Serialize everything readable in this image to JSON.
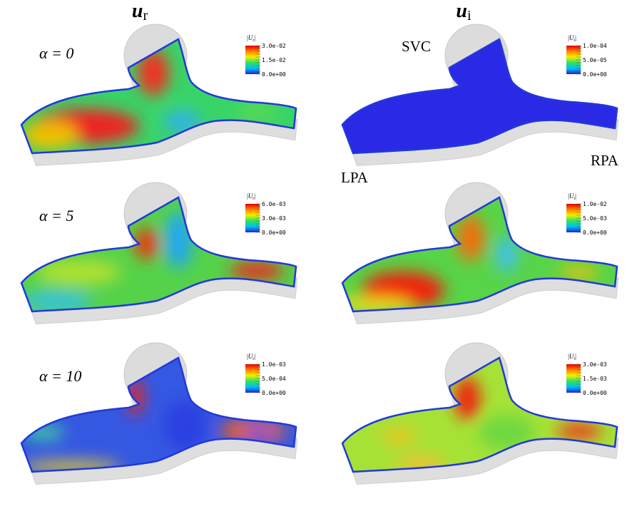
{
  "columns": [
    {
      "symbol": "u",
      "subscript": "r"
    },
    {
      "symbol": "u",
      "subscript": "i"
    }
  ],
  "rows": [
    {
      "label": "α = 0",
      "panels": [
        {
          "colorbar": {
            "title": {
              "open": "|",
              "symbol": "U",
              "subscript": "r",
              "close": "|"
            },
            "ticks": [
              "3.0e-02",
              "1.5e-02",
              "0.0e+00"
            ]
          }
        },
        {
          "colorbar": {
            "title": {
              "open": "|",
              "symbol": "U",
              "subscript": "i",
              "close": "|"
            },
            "ticks": [
              "1.0e-04",
              "5.0e-05",
              "0.0e+00"
            ]
          }
        }
      ]
    },
    {
      "label": "α = 5",
      "panels": [
        {
          "colorbar": {
            "title": {
              "open": "|",
              "symbol": "U",
              "subscript": "r",
              "close": "|"
            },
            "ticks": [
              "6.0e-03",
              "3.0e-03",
              "0.0e+00"
            ]
          }
        },
        {
          "colorbar": {
            "title": {
              "open": "|",
              "symbol": "U",
              "subscript": "i",
              "close": "|"
            },
            "ticks": [
              "1.0e-02",
              "5.0e-03",
              "0.0e+00"
            ]
          }
        }
      ]
    },
    {
      "label": "α = 10",
      "panels": [
        {
          "colorbar": {
            "title": {
              "open": "|",
              "symbol": "U",
              "subscript": "r",
              "close": "|"
            },
            "ticks": [
              "1.0e-03",
              "5.0e-04",
              "0.0e+00"
            ]
          }
        },
        {
          "colorbar": {
            "title": {
              "open": "|",
              "symbol": "U",
              "subscript": "i",
              "close": "|"
            },
            "ticks": [
              "3.0e-03",
              "1.5e-03",
              "0.0e+00"
            ]
          }
        }
      ]
    }
  ],
  "annotations": [
    {
      "text": "SVC"
    },
    {
      "text": "LPA"
    },
    {
      "text": "RPA"
    }
  ]
}
